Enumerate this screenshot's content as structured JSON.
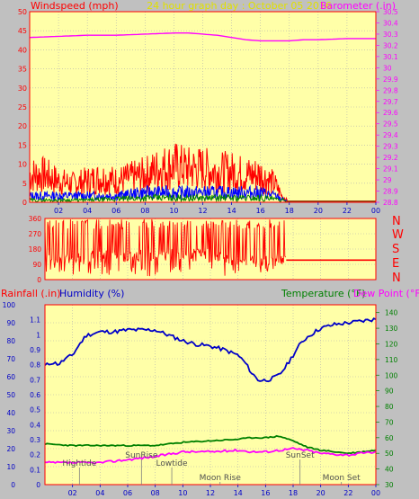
{
  "header": {
    "left": "Windspeed (mph)",
    "center": "24 hour graph day : October 05 2016",
    "right": "Barometer (.in)"
  },
  "colors": {
    "background": "#c0c0c0",
    "plot_bg": "#ffffa8",
    "frame": "#ff0000",
    "grid": "#b0b0b0",
    "wind": "#ff0000",
    "wind_avg": "#0000ff",
    "wind_min": "#008000",
    "barometer": "#ff00ff",
    "humidity": "#0000c8",
    "temperature": "#008000",
    "dewpoint": "#ff00ff",
    "center_title": "#e0e000"
  },
  "wind_dir_labels": [
    "N",
    "W",
    "S",
    "E",
    "N"
  ],
  "humidity_header": {
    "rainfall": "Rainfall (.in)",
    "humidity": "Humidity (%)",
    "temperature": "Temperature (°F)",
    "dewpoint": "Dew Point (°F)"
  },
  "events": [
    {
      "label": "Hightide",
      "hour": 2.5,
      "row": 0
    },
    {
      "label": "SunRise",
      "hour": 7.0,
      "row": 1
    },
    {
      "label": "Lowtide",
      "hour": 9.2,
      "row": 0
    },
    {
      "label": "Moon Rise",
      "hour": 12.7,
      "row": 2
    },
    {
      "label": "SunSet",
      "hour": 18.5,
      "row": 1
    },
    {
      "label": "Moon Set",
      "hour": 21.5,
      "row": 2
    }
  ],
  "chart_data": [
    {
      "type": "line",
      "name": "wind-barometer",
      "x_ticks": [
        "02",
        "04",
        "06",
        "08",
        "10",
        "12",
        "14",
        "16",
        "18",
        "20",
        "22",
        "00"
      ],
      "xlim": [
        0,
        24
      ],
      "ylabel_left": "Windspeed (mph)",
      "ylim_left": [
        0,
        50
      ],
      "yticks_left": [
        0,
        5,
        10,
        15,
        20,
        25,
        30,
        35,
        40,
        45,
        50
      ],
      "ylabel_right": "Barometer (.in)",
      "ylim_right": [
        28.8,
        30.5
      ],
      "yticks_right": [
        "28.8",
        "28.9",
        "29",
        "29.1",
        "29.2",
        "29.3",
        "29.4",
        "29.5",
        "29.6",
        "29.7",
        "29.8",
        "29.9",
        "30",
        "30.1",
        "30.2",
        "30.3",
        "30.4",
        "30.5"
      ],
      "series": [
        {
          "name": "Barometer",
          "axis": "right",
          "x": [
            0,
            2,
            4,
            6,
            8,
            10,
            11,
            12,
            13,
            14,
            15,
            16,
            17,
            18,
            19,
            20,
            22,
            24
          ],
          "values": [
            30.27,
            30.28,
            30.29,
            30.29,
            30.3,
            30.31,
            30.31,
            30.3,
            30.29,
            30.27,
            30.25,
            30.24,
            30.24,
            30.24,
            30.25,
            30.25,
            30.26,
            30.26
          ]
        },
        {
          "name": "Wind gust",
          "axis": "left",
          "x": [
            0,
            1,
            2,
            3,
            4,
            5,
            6,
            7,
            8,
            9,
            10,
            11,
            12,
            13,
            14,
            15,
            16,
            17,
            17.5,
            18,
            24
          ],
          "values": [
            9,
            9,
            7,
            6,
            7,
            8,
            7,
            8,
            9,
            11,
            12,
            11,
            11,
            10,
            10,
            9,
            9,
            6,
            2,
            0,
            0
          ]
        },
        {
          "name": "Wind average",
          "axis": "left",
          "x": [
            0,
            2,
            4,
            6,
            8,
            10,
            12,
            14,
            16,
            17,
            17.5,
            18,
            24
          ],
          "values": [
            2,
            2,
            2,
            2,
            3,
            3,
            3,
            3,
            3,
            2,
            1,
            0,
            0
          ]
        },
        {
          "name": "Wind low",
          "axis": "left",
          "x": [
            0,
            4,
            8,
            12,
            16,
            17.5,
            18,
            24
          ],
          "values": [
            0.5,
            0.5,
            1,
            1,
            1,
            0.5,
            0,
            0
          ]
        }
      ]
    },
    {
      "type": "line",
      "name": "wind-direction",
      "xlim": [
        0,
        24
      ],
      "ylim": [
        0,
        360
      ],
      "yticks": [
        0,
        90,
        180,
        270,
        360
      ],
      "series": [
        {
          "name": "Wind direction",
          "x": [
            0,
            2,
            4,
            6,
            8,
            10,
            12,
            14,
            16,
            17,
            17.5,
            24
          ],
          "values": [
            150,
            120,
            140,
            130,
            150,
            150,
            140,
            120,
            100,
            120,
            115,
            115
          ]
        }
      ]
    },
    {
      "type": "line",
      "name": "rain-humidity-temperature",
      "x_ticks": [
        "02",
        "04",
        "06",
        "08",
        "10",
        "12",
        "14",
        "16",
        "18",
        "20",
        "22",
        "00"
      ],
      "xlim": [
        0,
        24
      ],
      "ylabel_left": "Rainfall (.in)",
      "ylim_rain": [
        0,
        1.2
      ],
      "yticks_rain": [
        "0",
        "0.1",
        "0.2",
        "0.3",
        "0.4",
        "0.5",
        "0.6",
        "0.7",
        "0.8",
        "0.9",
        "1",
        "1.1"
      ],
      "ylim_humidity": [
        0,
        100
      ],
      "yticks_humidity": [
        0,
        10,
        20,
        30,
        40,
        50,
        60,
        70,
        80,
        90,
        100
      ],
      "ylabel_right": "Temperature (°F)",
      "ylim_temp": [
        30,
        145
      ],
      "yticks_temp": [
        30,
        40,
        50,
        60,
        70,
        80,
        90,
        100,
        110,
        120,
        130,
        140
      ],
      "series": [
        {
          "name": "Humidity",
          "axis": "humidity",
          "x": [
            0,
            0.5,
            1,
            1.5,
            2,
            2.5,
            3,
            4,
            5,
            6,
            7,
            8,
            9,
            10,
            11,
            12,
            13,
            14,
            14.5,
            15,
            15.5,
            16,
            16.5,
            17,
            17.5,
            18,
            18.5,
            19,
            20,
            21,
            22,
            23,
            24
          ],
          "values": [
            66,
            68,
            67,
            70,
            72,
            78,
            83,
            85,
            85,
            86,
            86,
            86,
            83,
            80,
            78,
            77,
            75,
            72,
            68,
            62,
            58,
            58,
            59,
            61,
            66,
            72,
            78,
            82,
            87,
            89,
            90,
            91,
            92
          ]
        },
        {
          "name": "Temperature",
          "axis": "temp",
          "x": [
            0,
            2,
            4,
            6,
            8,
            10,
            12,
            14,
            15,
            16,
            17,
            18,
            19,
            20,
            22,
            24
          ],
          "values": [
            56,
            55,
            55,
            55,
            55,
            57,
            58,
            59,
            60,
            60,
            61,
            58,
            54,
            52,
            50,
            52
          ]
        },
        {
          "name": "Dew Point",
          "axis": "temp",
          "x": [
            0,
            2,
            4,
            6,
            8,
            10,
            12,
            14,
            15,
            16,
            17,
            18,
            19,
            20,
            22,
            24
          ],
          "values": [
            44,
            44,
            44,
            46,
            48,
            51,
            51,
            52,
            51,
            51,
            52,
            53,
            52,
            50,
            49,
            51
          ]
        },
        {
          "name": "Rainfall",
          "axis": "rain",
          "x": [
            0,
            24
          ],
          "values": [
            0,
            0
          ]
        }
      ]
    }
  ]
}
